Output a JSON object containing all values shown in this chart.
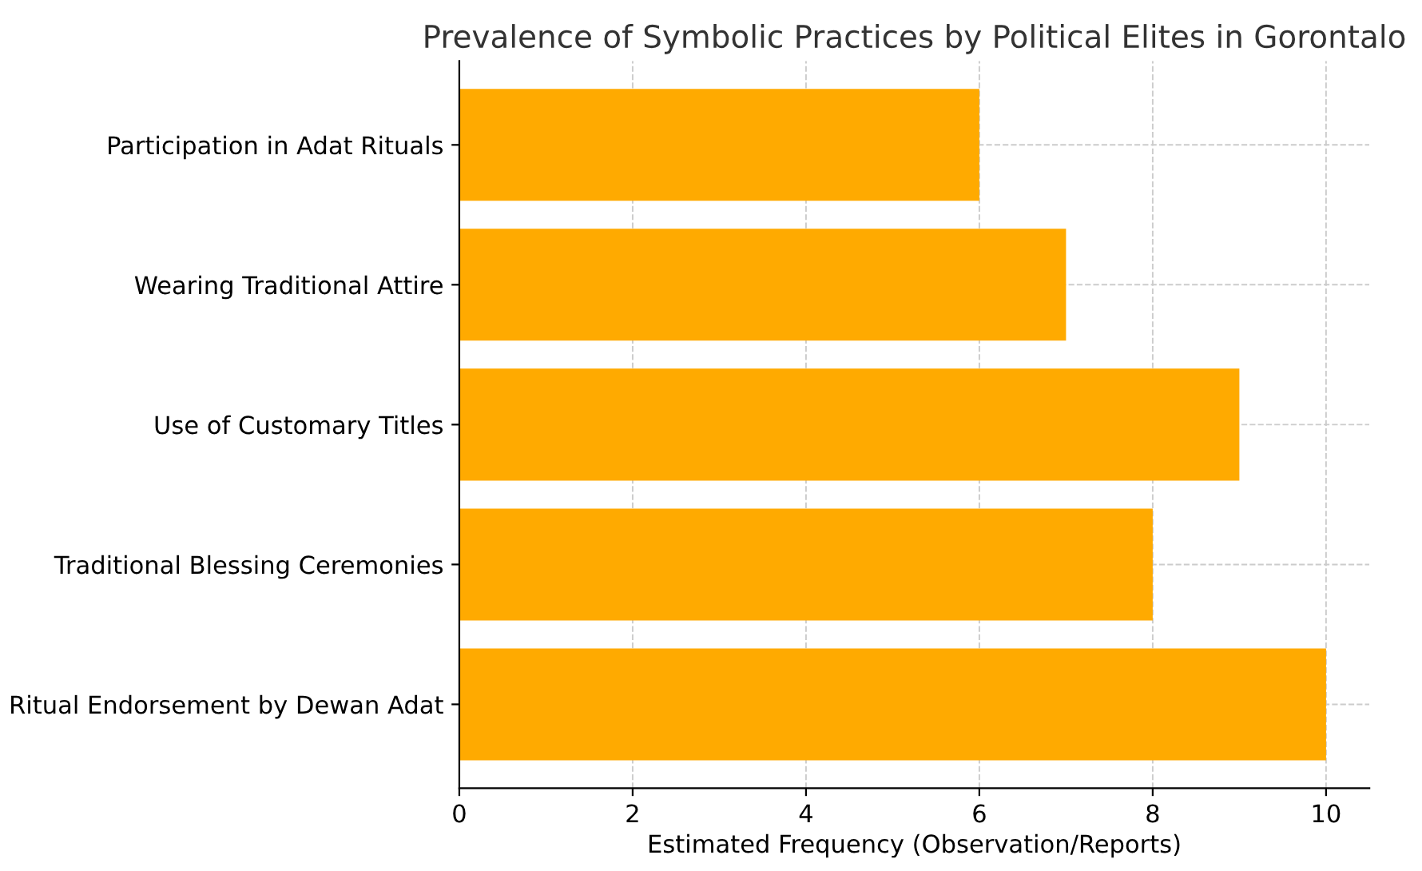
{
  "chart_data": {
    "type": "bar",
    "orientation": "horizontal",
    "title": "Prevalence of Symbolic Practices by Political Elites in Gorontalo",
    "xlabel": "Estimated Frequency (Observation/Reports)",
    "categories": [
      "Participation in Adat Rituals",
      "Wearing Traditional Attire",
      "Use of Customary Titles",
      "Traditional Blessing Ceremonies",
      "Ritual Endorsement by Dewan Adat"
    ],
    "values": [
      6,
      7,
      9,
      8,
      10
    ],
    "color": "#ffaa00",
    "xlim": [
      0,
      10.5
    ],
    "xticks": [
      0,
      2,
      4,
      6,
      8,
      10
    ],
    "grid": true
  }
}
